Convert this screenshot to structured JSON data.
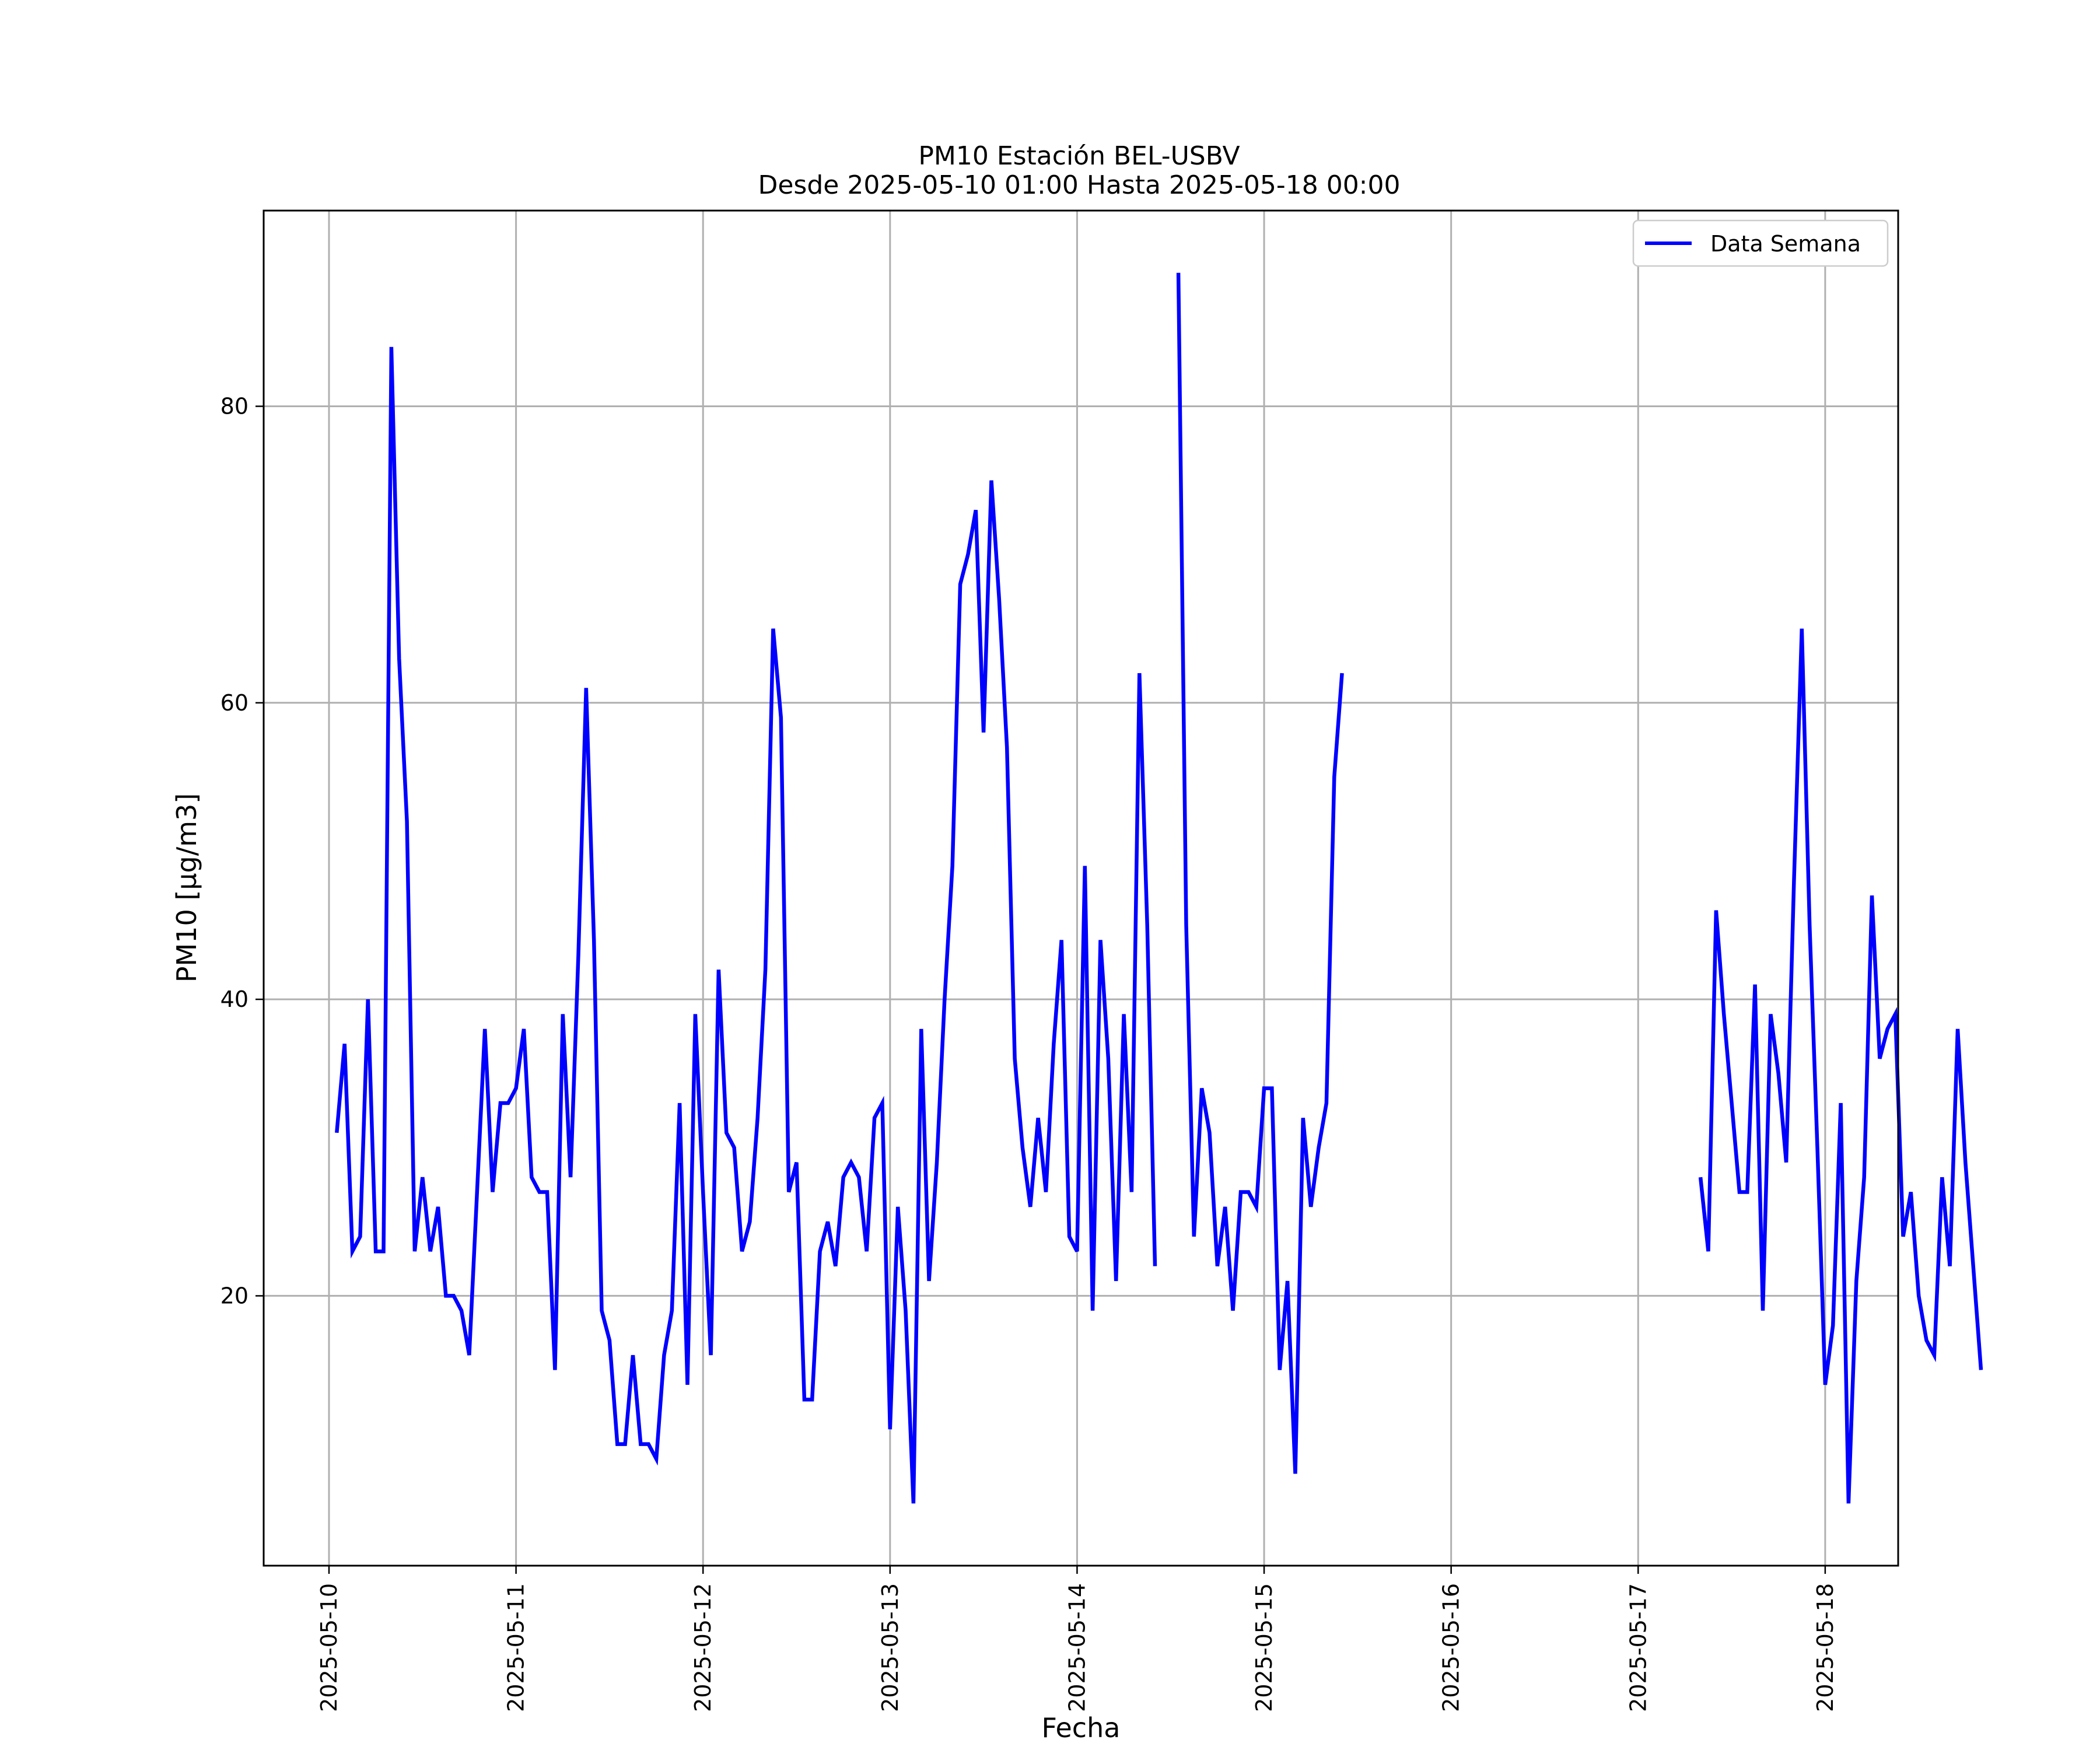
{
  "chart_data": {
    "type": "line",
    "title_line1": "PM10 Estación BEL-USBV",
    "title_line2": "Desde 2025-05-10 01:00 Hasta 2025-05-18 00:00",
    "xlabel": "Fecha",
    "ylabel": "PM10 [μg/m3]",
    "x_ticks": [
      "2025-05-10",
      "2025-05-11",
      "2025-05-12",
      "2025-05-13",
      "2025-05-14",
      "2025-05-15",
      "2025-05-16",
      "2025-05-17",
      "2025-05-18"
    ],
    "y_ticks": [
      20,
      40,
      60,
      80
    ],
    "xlim": [
      "2025-05-09 15:37",
      "2025-05-18 09:22"
    ],
    "ylim": [
      1.8,
      93.2
    ],
    "grid": true,
    "legend_position": "top-right",
    "series": [
      {
        "name": "Data Semana",
        "color": "#0000ff",
        "start": "2025-05-10 01:00",
        "interval_hours": 1,
        "values": [
          31,
          37,
          23,
          24,
          40,
          23,
          23,
          84,
          63,
          52,
          23,
          28,
          23,
          26,
          20,
          20,
          19,
          16,
          27,
          38,
          27,
          33,
          33,
          34,
          38,
          28,
          27,
          27,
          15,
          39,
          28,
          43,
          61,
          44,
          19,
          17,
          10,
          10,
          16,
          10,
          10,
          9,
          16,
          19,
          33,
          14,
          39,
          27,
          16,
          42,
          31,
          30,
          23,
          25,
          32,
          42,
          65,
          59,
          27,
          29,
          13,
          13,
          23,
          25,
          22,
          28,
          29,
          28,
          23,
          32,
          33,
          11,
          26,
          19,
          6,
          38,
          21,
          29,
          40,
          49,
          68,
          70,
          73,
          58,
          75,
          67,
          57,
          36,
          30,
          26,
          32,
          27,
          37,
          44,
          24,
          23,
          49,
          19,
          44,
          36,
          21,
          39,
          27,
          62,
          45,
          22,
          null,
          null,
          89,
          45,
          24,
          34,
          31,
          22,
          26,
          19,
          27,
          27,
          26,
          34,
          34,
          15,
          21,
          8,
          32,
          26,
          30,
          33,
          55,
          62,
          null,
          null,
          null,
          null,
          null,
          null,
          null,
          null,
          null,
          null,
          null,
          null,
          null,
          null,
          null,
          null,
          null,
          null,
          null,
          null,
          null,
          null,
          null,
          null,
          null,
          null,
          null,
          null,
          null,
          null,
          null,
          null,
          null,
          null,
          null,
          null,
          null,
          null,
          null,
          null,
          null,
          null,
          null,
          null,
          null,
          28,
          23,
          46,
          39,
          33,
          27,
          27,
          41,
          19,
          39,
          35,
          29,
          48,
          65,
          45,
          30,
          14,
          18,
          33,
          6,
          21,
          28,
          47,
          36,
          38,
          39,
          24,
          27,
          20,
          17,
          16,
          28,
          22,
          38,
          29,
          22,
          15
        ]
      }
    ]
  }
}
